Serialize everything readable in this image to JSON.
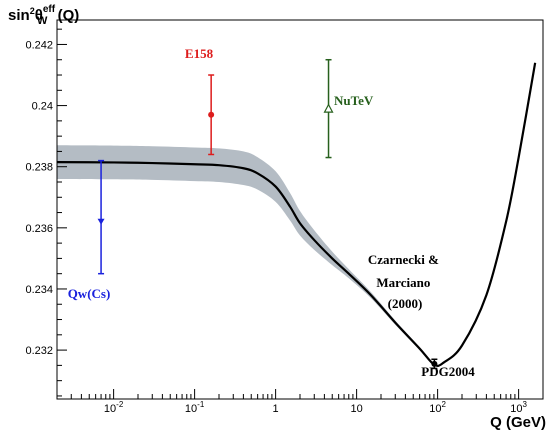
{
  "chart_data": {
    "type": "line",
    "title": "",
    "ylabel": {
      "prefix": "sin",
      "power": "2",
      "symbol": "θ",
      "superscript": "eff",
      "subscript": "W",
      "suffix": " (Q)"
    },
    "xlabel": "Q (GeV)",
    "x_scale": "log",
    "xlim": [
      0.002,
      2000
    ],
    "ylim": [
      0.2304,
      0.2428
    ],
    "grid": false,
    "yticks": [
      {
        "value": 0.232,
        "label": "0.232"
      },
      {
        "value": 0.234,
        "label": "0.234"
      },
      {
        "value": 0.236,
        "label": "0.236"
      },
      {
        "value": 0.238,
        "label": "0.238"
      },
      {
        "value": 0.24,
        "label": "0.24"
      },
      {
        "value": 0.242,
        "label": "0.242"
      }
    ],
    "xticks": [
      {
        "value": 0.01,
        "base": "10",
        "exp": "-2"
      },
      {
        "value": 0.1,
        "base": "10",
        "exp": "-1"
      },
      {
        "value": 1,
        "base": "1",
        "exp": ""
      },
      {
        "value": 10,
        "base": "10",
        "exp": ""
      },
      {
        "value": 100,
        "base": "10",
        "exp": "2"
      },
      {
        "value": 1000,
        "base": "10",
        "exp": "3"
      }
    ],
    "theory": {
      "x": [
        0.002,
        0.01,
        0.03,
        0.1,
        0.2,
        0.4,
        0.6,
        1.0,
        1.5,
        2.0,
        3.0,
        5.0,
        8.0,
        15,
        30,
        60,
        91.19,
        120,
        200,
        400,
        700,
        1000,
        1600
      ],
      "y": [
        0.23815,
        0.23814,
        0.23812,
        0.23808,
        0.23805,
        0.23795,
        0.23778,
        0.23735,
        0.2367,
        0.23615,
        0.2356,
        0.235,
        0.2345,
        0.2338,
        0.2329,
        0.23205,
        0.23152,
        0.2316,
        0.23215,
        0.2338,
        0.2362,
        0.2383,
        0.2414
      ],
      "band_halfwidth": [
        0.00055,
        0.00055,
        0.00055,
        0.00055,
        0.00055,
        0.00055,
        0.00053,
        0.0005,
        0.00045,
        0.0004,
        0.00032,
        0.00022,
        0.00015,
        0.0001,
        7e-05,
        5e-05,
        3e-05,
        3e-05,
        3e-05,
        3e-05,
        3e-05,
        3e-05,
        3e-05
      ],
      "line_color": "#000000",
      "band_color": "#b4bcc4",
      "annotation_lines": [
        "Czarnecki &",
        "Marciano",
        "(2000)"
      ]
    },
    "measurements": [
      {
        "label": "Qw(Cs)",
        "x": 0.007,
        "y": 0.2362,
        "y_low": 0.2345,
        "y_high": 0.2382,
        "color": "#1a22dd",
        "marker": "triangle-down"
      },
      {
        "label": "E158",
        "x": 0.16,
        "y": 0.2397,
        "y_low": 0.2384,
        "y_high": 0.241,
        "color": "#dd1c1c",
        "marker": "circle"
      },
      {
        "label": "NuTeV",
        "x": 4.5,
        "y": 0.2399,
        "y_low": 0.2383,
        "y_high": 0.2415,
        "color": "#27601d",
        "marker": "triangle-up-open"
      },
      {
        "label": "PDG2004",
        "x": 91.19,
        "y": 0.23155,
        "y_low": 0.2314,
        "y_high": 0.2317,
        "color": "#000000",
        "marker": "circle"
      }
    ]
  }
}
